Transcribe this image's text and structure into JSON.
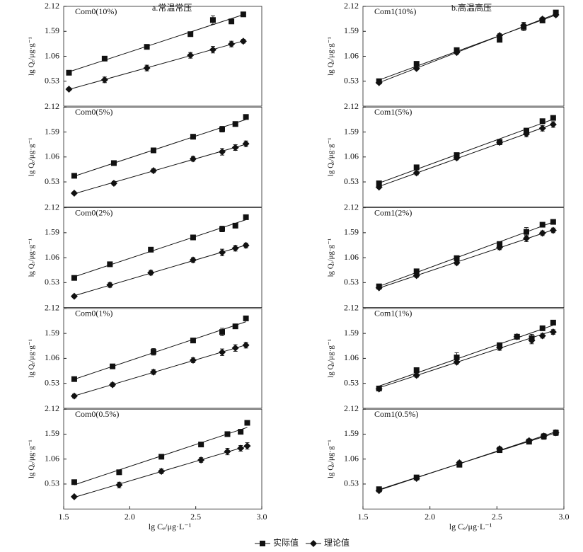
{
  "chart_data": [
    {
      "type": "scatter",
      "title": "Com0(10%)",
      "subtitle": "a.常温常压",
      "y_label": "lg Qₑ/μg·g⁻¹",
      "xlim": [
        1.5,
        3.0
      ],
      "ylim": [
        0,
        2.12
      ],
      "yticks": [
        0.53,
        1.06,
        1.59,
        2.12
      ],
      "trendline": true,
      "x": [
        1.54,
        1.81,
        2.13,
        2.46,
        2.63,
        2.77,
        2.86
      ],
      "series": [
        {
          "name": "实际值",
          "marker": "square",
          "color": "#111",
          "values": [
            0.71,
            1.01,
            1.26,
            1.53,
            1.83,
            1.8,
            1.95
          ],
          "errors": [
            0.02,
            0.03,
            0.03,
            0.03,
            0.09,
            0.03,
            0.03
          ]
        },
        {
          "name": "理论值",
          "marker": "diamond",
          "color": "#111",
          "values": [
            0.36,
            0.56,
            0.81,
            1.08,
            1.2,
            1.32,
            1.38
          ],
          "errors": [
            0.03,
            0.06,
            0.06,
            0.06,
            0.07,
            0.06,
            0.04
          ]
        }
      ]
    },
    {
      "type": "scatter",
      "title": "Com0(5%)",
      "y_label": "lg Qₑ/μg·g⁻¹",
      "xlim": [
        1.5,
        3.0
      ],
      "ylim": [
        0,
        2.12
      ],
      "yticks": [
        0.53,
        1.06,
        1.59,
        2.12
      ],
      "trendline": true,
      "x": [
        1.58,
        1.88,
        2.18,
        2.48,
        2.7,
        2.8,
        2.88
      ],
      "series": [
        {
          "name": "实际值",
          "marker": "square",
          "color": "#111",
          "values": [
            0.66,
            0.93,
            1.2,
            1.49,
            1.65,
            1.76,
            1.91
          ],
          "errors": [
            0.02,
            0.03,
            0.03,
            0.03,
            0.06,
            0.03,
            0.03
          ]
        },
        {
          "name": "理论值",
          "marker": "diamond",
          "color": "#111",
          "values": [
            0.29,
            0.5,
            0.77,
            1.02,
            1.17,
            1.26,
            1.34
          ],
          "errors": [
            0.03,
            0.04,
            0.04,
            0.05,
            0.07,
            0.06,
            0.06
          ]
        }
      ]
    },
    {
      "type": "scatter",
      "title": "Com0(2%)",
      "y_label": "lg Qₑ/μg·g⁻¹",
      "xlim": [
        1.5,
        3.0
      ],
      "ylim": [
        0,
        2.12
      ],
      "yticks": [
        0.53,
        1.06,
        1.59,
        2.12
      ],
      "trendline": true,
      "x": [
        1.58,
        1.85,
        2.16,
        2.48,
        2.7,
        2.8,
        2.88
      ],
      "series": [
        {
          "name": "实际值",
          "marker": "square",
          "color": "#111",
          "values": [
            0.63,
            0.92,
            1.23,
            1.49,
            1.67,
            1.74,
            1.92
          ],
          "errors": [
            0.02,
            0.03,
            0.03,
            0.03,
            0.06,
            0.03,
            0.03
          ]
        },
        {
          "name": "理论值",
          "marker": "diamond",
          "color": "#111",
          "values": [
            0.24,
            0.48,
            0.74,
            1.01,
            1.17,
            1.26,
            1.32
          ],
          "errors": [
            0.03,
            0.05,
            0.05,
            0.05,
            0.07,
            0.06,
            0.05
          ]
        }
      ]
    },
    {
      "type": "scatter",
      "title": "Com0(1%)",
      "y_label": "lg Qₑ/μg·g⁻¹",
      "xlim": [
        1.5,
        3.0
      ],
      "ylim": [
        0,
        2.12
      ],
      "yticks": [
        0.53,
        1.06,
        1.59,
        2.12
      ],
      "trendline": true,
      "x": [
        1.58,
        1.87,
        2.18,
        2.48,
        2.7,
        2.8,
        2.88
      ],
      "series": [
        {
          "name": "实际值",
          "marker": "square",
          "color": "#111",
          "values": [
            0.62,
            0.89,
            1.2,
            1.44,
            1.62,
            1.74,
            1.91
          ],
          "errors": [
            0.02,
            0.03,
            0.07,
            0.03,
            0.08,
            0.03,
            0.03
          ]
        },
        {
          "name": "理论值",
          "marker": "diamond",
          "color": "#111",
          "values": [
            0.26,
            0.5,
            0.77,
            1.02,
            1.19,
            1.28,
            1.34
          ],
          "errors": [
            0.04,
            0.04,
            0.05,
            0.05,
            0.07,
            0.07,
            0.06
          ]
        }
      ]
    },
    {
      "type": "scatter",
      "title": "Com0(0.5%)",
      "y_label": "lg Qₑ/μg·g⁻¹",
      "x_label": "lg Cₑ/μg·L⁻¹",
      "xlim": [
        1.5,
        3.0
      ],
      "ylim": [
        0,
        2.12
      ],
      "yticks": [
        0.53,
        1.06,
        1.59,
        2.12
      ],
      "xticks": [
        1.5,
        {
          "value": 2,
          "label": "2.0"
        },
        2.5,
        {
          "value": 3,
          "label": "3.0"
        }
      ],
      "trendline": true,
      "x": [
        1.58,
        1.92,
        2.24,
        2.54,
        2.74,
        2.84,
        2.89
      ],
      "series": [
        {
          "name": "实际值",
          "marker": "square",
          "color": "#111",
          "values": [
            0.57,
            0.78,
            1.11,
            1.37,
            1.59,
            1.64,
            1.83
          ],
          "errors": [
            0.02,
            0.03,
            0.03,
            0.03,
            0.03,
            0.03,
            0.03
          ]
        },
        {
          "name": "理论值",
          "marker": "diamond",
          "color": "#111",
          "values": [
            0.26,
            0.51,
            0.8,
            1.04,
            1.22,
            1.29,
            1.34
          ],
          "errors": [
            0.03,
            0.06,
            0.05,
            0.05,
            0.07,
            0.06,
            0.07
          ]
        }
      ]
    },
    {
      "type": "scatter",
      "title": "Com1(10%)",
      "subtitle": "b.高温高压",
      "y_label": "lg Qₑ/μg·g⁻¹",
      "xlim": [
        1.5,
        3.0
      ],
      "ylim": [
        0,
        2.12
      ],
      "yticks": [
        0.53,
        1.06,
        1.59,
        2.12
      ],
      "trendline": true,
      "x": [
        1.62,
        1.9,
        2.2,
        2.52,
        2.7,
        2.84,
        2.94
      ],
      "series": [
        {
          "name": "实际值",
          "marker": "square",
          "color": "#111",
          "values": [
            0.53,
            0.9,
            1.19,
            1.41,
            1.68,
            1.82,
            1.99
          ],
          "errors": [
            0.03,
            0.03,
            0.03,
            0.04,
            0.08,
            0.03,
            0.03
          ]
        },
        {
          "name": "理论值",
          "marker": "diamond",
          "color": "#111",
          "values": [
            0.5,
            0.8,
            1.14,
            1.5,
            1.71,
            1.85,
            1.94
          ],
          "errors": [
            0.03,
            0.03,
            0.04,
            0.04,
            0.07,
            0.04,
            0.04
          ]
        }
      ]
    },
    {
      "type": "scatter",
      "title": "Com1(5%)",
      "y_label": "lg Qₑ/μg·g⁻¹",
      "xlim": [
        1.5,
        3.0
      ],
      "ylim": [
        0,
        2.12
      ],
      "yticks": [
        0.53,
        1.06,
        1.59,
        2.12
      ],
      "trendline": true,
      "x": [
        1.62,
        1.9,
        2.2,
        2.52,
        2.72,
        2.84,
        2.92
      ],
      "series": [
        {
          "name": "实际值",
          "marker": "square",
          "color": "#111",
          "values": [
            0.5,
            0.84,
            1.1,
            1.38,
            1.62,
            1.82,
            1.89
          ],
          "errors": [
            0.03,
            0.03,
            0.03,
            0.04,
            0.03,
            0.03,
            0.03
          ]
        },
        {
          "name": "理论值",
          "marker": "diamond",
          "color": "#111",
          "values": [
            0.42,
            0.72,
            1.04,
            1.37,
            1.55,
            1.67,
            1.75
          ],
          "errors": [
            0.03,
            0.04,
            0.04,
            0.05,
            0.06,
            0.06,
            0.06
          ]
        }
      ]
    },
    {
      "type": "scatter",
      "title": "Com1(2%)",
      "y_label": "lg Qₑ/μg·g⁻¹",
      "xlim": [
        1.5,
        3.0
      ],
      "ylim": [
        0,
        2.12
      ],
      "yticks": [
        0.53,
        1.06,
        1.59,
        2.12
      ],
      "trendline": true,
      "x": [
        1.62,
        1.9,
        2.2,
        2.52,
        2.72,
        2.84,
        2.92
      ],
      "series": [
        {
          "name": "实际值",
          "marker": "square",
          "color": "#111",
          "values": [
            0.45,
            0.77,
            1.05,
            1.35,
            1.61,
            1.76,
            1.82
          ],
          "errors": [
            0.03,
            0.03,
            0.03,
            0.04,
            0.09,
            0.03,
            0.03
          ]
        },
        {
          "name": "理论值",
          "marker": "diamond",
          "color": "#111",
          "values": [
            0.42,
            0.68,
            0.95,
            1.28,
            1.47,
            1.58,
            1.64
          ],
          "errors": [
            0.03,
            0.04,
            0.04,
            0.05,
            0.07,
            0.05,
            0.05
          ]
        }
      ]
    },
    {
      "type": "scatter",
      "title": "Com1(1%)",
      "y_label": "lg Qₑ/μg·g⁻¹",
      "xlim": [
        1.5,
        3.0
      ],
      "ylim": [
        0,
        2.12
      ],
      "yticks": [
        0.53,
        1.06,
        1.59,
        2.12
      ],
      "trendline": true,
      "x": [
        1.62,
        1.9,
        2.2,
        2.52,
        2.65,
        2.76,
        2.84,
        2.92
      ],
      "series": [
        {
          "name": "实际值",
          "marker": "square",
          "color": "#111",
          "values": [
            0.42,
            0.81,
            1.08,
            1.34,
            1.52,
            1.49,
            1.7,
            1.82
          ],
          "errors": [
            0.03,
            0.03,
            0.1,
            0.04,
            0.03,
            0.08,
            0.03,
            0.03
          ]
        },
        {
          "name": "理论值",
          "marker": "diamond",
          "color": "#111",
          "values": [
            0.41,
            0.7,
            0.98,
            1.29,
            1.52,
            1.44,
            1.54,
            1.62
          ],
          "errors": [
            0.03,
            0.04,
            0.04,
            0.06,
            0.03,
            0.07,
            0.05,
            0.05
          ]
        }
      ]
    },
    {
      "type": "scatter",
      "title": "Com1(0.5%)",
      "y_label": "lg Qₑ/μg·g⁻¹",
      "x_label": "lg Cₑ/μg·L⁻¹",
      "xlim": [
        1.5,
        3.0
      ],
      "ylim": [
        0,
        2.12
      ],
      "yticks": [
        0.53,
        1.06,
        1.59,
        2.12
      ],
      "xticks": [
        1.5,
        {
          "value": 2,
          "label": "2.0"
        },
        2.5,
        {
          "value": 3,
          "label": "3.0"
        }
      ],
      "trendline": true,
      "x": [
        1.62,
        1.9,
        2.22,
        2.52,
        2.74,
        2.85,
        2.94
      ],
      "series": [
        {
          "name": "实际值",
          "marker": "square",
          "color": "#111",
          "values": [
            0.42,
            0.67,
            0.94,
            1.25,
            1.43,
            1.54,
            1.62
          ],
          "errors": [
            0.03,
            0.03,
            0.04,
            0.04,
            0.04,
            0.06,
            0.05
          ]
        },
        {
          "name": "理论值",
          "marker": "diamond",
          "color": "#111",
          "values": [
            0.39,
            0.65,
            0.98,
            1.28,
            1.45,
            1.55,
            1.62
          ],
          "errors": [
            0.03,
            0.03,
            0.04,
            0.04,
            0.04,
            0.05,
            0.06
          ]
        }
      ]
    }
  ]
}
